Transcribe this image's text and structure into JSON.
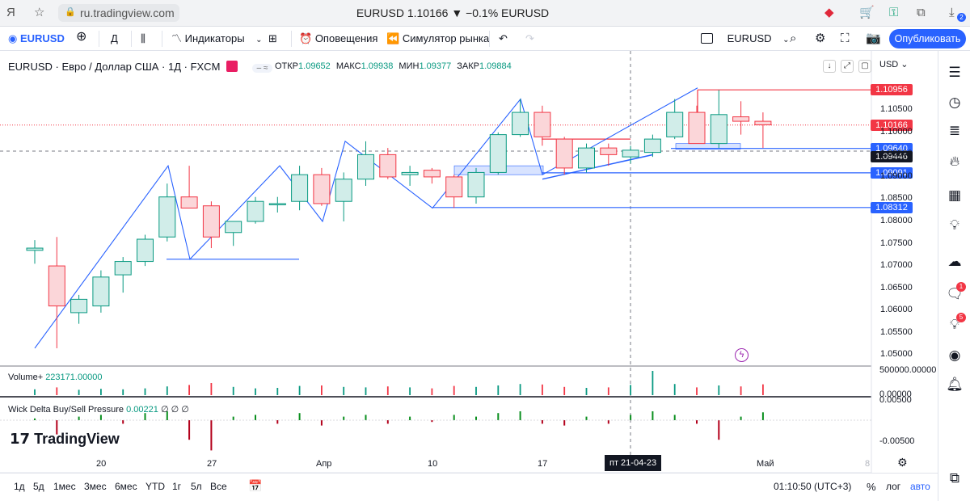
{
  "browser": {
    "url": "ru.tradingview.com",
    "tab_title": "EURUSD 1.10166 ▼ −0.1% EURUSD",
    "badge_count": "2"
  },
  "toolbar": {
    "symbol": "EURUSD",
    "interval": "Д",
    "indicators_label": "Индикаторы",
    "alerts_label": "Оповещения",
    "replay_label": "Симулятор рынка",
    "layout_symbol": "EURUSD",
    "publish_label": "Опубликовать"
  },
  "legend": {
    "title": "EURUSD · Евро / Доллар США · 1Д · FXCM",
    "open_label": "ОТКР",
    "open": "1.09652",
    "high_label": "МАКС",
    "high": "1.09938",
    "low_label": "МИН",
    "low": "1.09377",
    "close_label": "ЗАКР",
    "close": "1.09884"
  },
  "currency_label": "USD",
  "price_axis_ticks": [
    "1.10500",
    "1.10000",
    "1.09500",
    "1.09000",
    "1.08500",
    "1.08000",
    "1.07500",
    "1.07000",
    "1.06500",
    "1.06000",
    "1.05500",
    "1.05000"
  ],
  "price_tags": [
    {
      "value": "1.10956",
      "color": "#f23645"
    },
    {
      "value": "1.10166",
      "color": "#f23645"
    },
    {
      "value": "1.09640",
      "color": "#2962ff"
    },
    {
      "value": "1.09446",
      "color": "#131722"
    },
    {
      "value": "1.09091",
      "color": "#2962ff"
    },
    {
      "value": "1.08312",
      "color": "#2962ff"
    }
  ],
  "volume_pane": {
    "label": "Volume+",
    "value": "223171.00000",
    "axis_top": "500000.00000",
    "axis_bottom": "0.00000"
  },
  "wick_pane": {
    "label": "Wick Delta Buy/Sell Pressure",
    "value": "0.00221",
    "extra": "∅ ∅ ∅",
    "axis_top": "0.00500",
    "axis_bottom": "-0.00500"
  },
  "time_axis": [
    "20",
    "27",
    "Апр",
    "10",
    "17",
    "Май",
    "8"
  ],
  "crosshair_date": "пт 21-04-23",
  "logo": "TradingView",
  "bottom_bar": {
    "ranges": [
      "1д",
      "5д",
      "1мес",
      "3мес",
      "6мес",
      "YTD",
      "1г",
      "5л",
      "Все"
    ],
    "clock": "01:10:50 (UTC+3)",
    "percent": "%",
    "log": "лог",
    "auto": "авто"
  },
  "sidebar_badges": {
    "chat": "1",
    "ideas": "5"
  },
  "colors": {
    "up": "#089981",
    "down": "#f23645",
    "up_fill": "#d1ede9",
    "down_fill": "#fbd6d9",
    "accent": "#2962ff"
  },
  "chart_data": {
    "type": "candlestick",
    "ylim": [
      1.0475,
      1.1125
    ],
    "candles": [
      {
        "o": 1.0735,
        "h": 1.0758,
        "l": 1.0705,
        "c": 1.074
      },
      {
        "o": 1.07,
        "h": 1.0765,
        "l": 1.0515,
        "c": 1.061
      },
      {
        "o": 1.0595,
        "h": 1.0635,
        "l": 1.057,
        "c": 1.0625
      },
      {
        "o": 1.061,
        "h": 1.069,
        "l": 1.0595,
        "c": 1.0675
      },
      {
        "o": 1.068,
        "h": 1.072,
        "l": 1.064,
        "c": 1.071
      },
      {
        "o": 1.071,
        "h": 1.077,
        "l": 1.07,
        "c": 1.076
      },
      {
        "o": 1.0765,
        "h": 1.0885,
        "l": 1.0755,
        "c": 1.0855
      },
      {
        "o": 1.0855,
        "h": 1.0925,
        "l": 1.083,
        "c": 1.083
      },
      {
        "o": 1.0835,
        "h": 1.0845,
        "l": 1.074,
        "c": 1.0765
      },
      {
        "o": 1.0775,
        "h": 1.08,
        "l": 1.0745,
        "c": 1.08
      },
      {
        "o": 1.08,
        "h": 1.0855,
        "l": 1.0795,
        "c": 1.0845
      },
      {
        "o": 1.084,
        "h": 1.0855,
        "l": 1.082,
        "c": 1.084
      },
      {
        "o": 1.0845,
        "h": 1.0925,
        "l": 1.0825,
        "c": 1.0905
      },
      {
        "o": 1.0905,
        "h": 1.092,
        "l": 1.0835,
        "c": 1.084
      },
      {
        "o": 1.0845,
        "h": 1.091,
        "l": 1.08,
        "c": 1.0895
      },
      {
        "o": 1.0895,
        "h": 1.098,
        "l": 1.088,
        "c": 1.095
      },
      {
        "o": 1.095,
        "h": 1.0965,
        "l": 1.0895,
        "c": 1.09
      },
      {
        "o": 1.0905,
        "h": 1.0925,
        "l": 1.088,
        "c": 1.091
      },
      {
        "o": 1.0915,
        "h": 1.092,
        "l": 1.0885,
        "c": 1.09
      },
      {
        "o": 1.09,
        "h": 1.0905,
        "l": 1.083,
        "c": 1.0855
      },
      {
        "o": 1.0855,
        "h": 1.092,
        "l": 1.084,
        "c": 1.091
      },
      {
        "o": 1.091,
        "h": 1.1,
        "l": 1.0905,
        "c": 1.0995
      },
      {
        "o": 1.0995,
        "h": 1.1075,
        "l": 1.099,
        "c": 1.1045
      },
      {
        "o": 1.1045,
        "h": 1.106,
        "l": 1.097,
        "c": 1.099
      },
      {
        "o": 1.0985,
        "h": 1.099,
        "l": 1.0905,
        "c": 1.092
      },
      {
        "o": 1.092,
        "h": 1.0975,
        "l": 1.091,
        "c": 1.0965
      },
      {
        "o": 1.0965,
        "h": 1.0975,
        "l": 1.0925,
        "c": 1.095
      },
      {
        "o": 1.0945,
        "h": 1.097,
        "l": 1.093,
        "c": 1.096
      },
      {
        "o": 1.0955,
        "h": 1.0995,
        "l": 1.0945,
        "c": 1.0985
      },
      {
        "o": 1.099,
        "h": 1.1075,
        "l": 1.0985,
        "c": 1.1045
      },
      {
        "o": 1.1045,
        "h": 1.106,
        "l": 1.0975,
        "c": 1.0975
      },
      {
        "o": 1.0975,
        "h": 1.1095,
        "l": 1.0965,
        "c": 1.104
      },
      {
        "o": 1.1035,
        "h": 1.107,
        "l": 1.0995,
        "c": 1.1025
      },
      {
        "o": 1.1025,
        "h": 1.1045,
        "l": 1.0965,
        "c": 1.1017
      }
    ],
    "volume": [
      120000,
      160000,
      110000,
      130000,
      120000,
      140000,
      180000,
      210000,
      250000,
      170000,
      140000,
      150000,
      190000,
      200000,
      170000,
      160000,
      180000,
      160000,
      140000,
      190000,
      170000,
      200000,
      230000,
      220000,
      170000,
      150000,
      160000,
      210000,
      500000,
      230000,
      160000,
      200000,
      180000,
      223171
    ],
    "wick_delta": [
      0.0005,
      -0.004,
      0.001,
      0.0015,
      -0.001,
      0.002,
      0.0025,
      -0.0055,
      -0.0085,
      0.001,
      0.0015,
      -0.001,
      0.002,
      -0.0015,
      0.001,
      0.0015,
      -0.001,
      0.001,
      -0.0005,
      0.0015,
      0.001,
      0.002,
      0.0025,
      -0.001,
      -0.0015,
      0.001,
      -0.001,
      0.0015,
      0.0025,
      0.0015,
      -0.001,
      -0.0055,
      0.001,
      0.00221
    ]
  }
}
